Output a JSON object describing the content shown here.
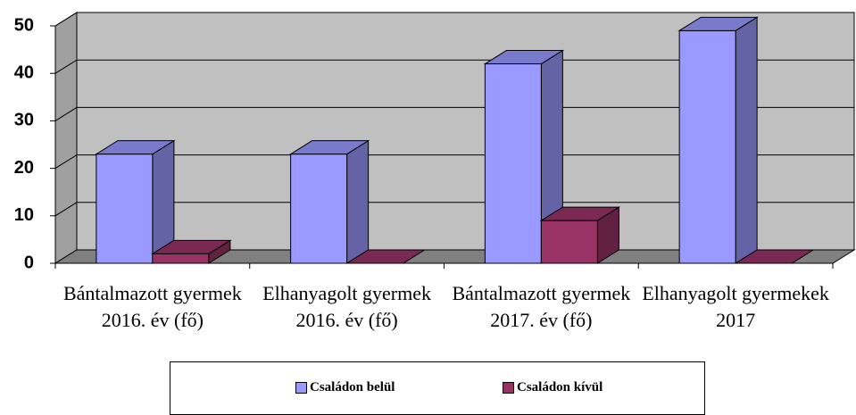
{
  "chart_data": {
    "type": "bar3d",
    "categories": [
      "Bántalmazott gyermek 2016. év (fő)",
      "Elhanyagolt gyermek 2016. év (fő)",
      "Bántalmazott gyermek 2017. év (fő)",
      "Elhanyagolt gyermekek 2017"
    ],
    "series": [
      {
        "name": "Családon belül",
        "color": "#9999ff",
        "values": [
          23,
          23,
          42,
          49
        ]
      },
      {
        "name": "Családon kívül",
        "color": "#993366",
        "values": [
          2,
          0,
          9,
          0
        ]
      }
    ],
    "ylim": [
      0,
      50
    ],
    "yticks": [
      0,
      10,
      20,
      30,
      40,
      50
    ],
    "grid": true,
    "legend": "bottom"
  }
}
